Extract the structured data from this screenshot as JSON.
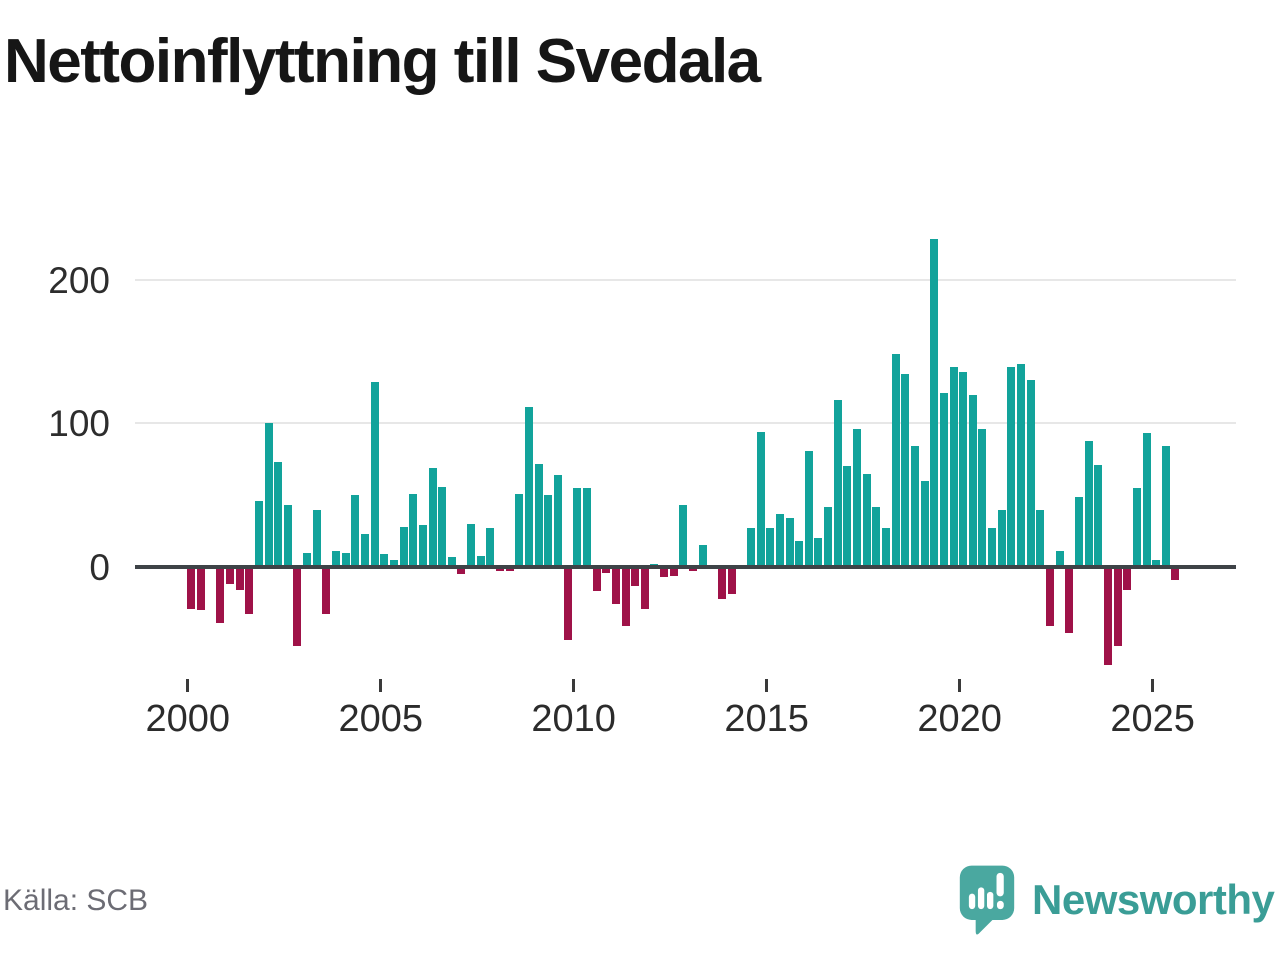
{
  "title": "Nettoinflyttning till Svedala",
  "source": "Källa: SCB",
  "branding": {
    "name": "Newsworthy",
    "icon": "newsworthy-speech-bubble-chart-icon"
  },
  "colors": {
    "positive": "#12a39b",
    "negative": "#9f1248",
    "axis": "#3e4347",
    "grid": "#e7e7e7",
    "brand_teal": "#3a9d96",
    "icon_teal": "#4aa8a0"
  },
  "chart_data": {
    "type": "bar",
    "title": "Nettoinflyttning till Svedala",
    "xlabel": "",
    "ylabel": "",
    "yticks": [
      0,
      100,
      200
    ],
    "xticks": [
      2000,
      2005,
      2010,
      2015,
      2020,
      2025
    ],
    "ylim": [
      -75,
      235
    ],
    "grid": "horizontal",
    "legend": "none",
    "positive_color": "#12a39b",
    "negative_color": "#9f1248",
    "categories": [
      "2000 Q1",
      "2000 Q2",
      "2000 Q3",
      "2000 Q4",
      "2001 Q1",
      "2001 Q2",
      "2001 Q3",
      "2001 Q4",
      "2002 Q1",
      "2002 Q2",
      "2002 Q3",
      "2002 Q4",
      "2003 Q1",
      "2003 Q2",
      "2003 Q3",
      "2003 Q4",
      "2004 Q1",
      "2004 Q2",
      "2004 Q3",
      "2004 Q4",
      "2005 Q1",
      "2005 Q2",
      "2005 Q3",
      "2005 Q4",
      "2006 Q1",
      "2006 Q2",
      "2006 Q3",
      "2006 Q4",
      "2007 Q1",
      "2007 Q2",
      "2007 Q3",
      "2007 Q4",
      "2008 Q1",
      "2008 Q2",
      "2008 Q3",
      "2008 Q4",
      "2009 Q1",
      "2009 Q2",
      "2009 Q3",
      "2009 Q4",
      "2010 Q1",
      "2010 Q2",
      "2010 Q3",
      "2010 Q4",
      "2011 Q1",
      "2011 Q2",
      "2011 Q3",
      "2011 Q4",
      "2012 Q1",
      "2012 Q2",
      "2012 Q3",
      "2012 Q4",
      "2013 Q1",
      "2013 Q2",
      "2013 Q3",
      "2013 Q4",
      "2014 Q1",
      "2014 Q2",
      "2014 Q3",
      "2014 Q4",
      "2015 Q1",
      "2015 Q2",
      "2015 Q3",
      "2015 Q4",
      "2016 Q1",
      "2016 Q2",
      "2016 Q3",
      "2016 Q4",
      "2017 Q1",
      "2017 Q2",
      "2017 Q3",
      "2017 Q4",
      "2018 Q1",
      "2018 Q2",
      "2018 Q3",
      "2018 Q4",
      "2019 Q1",
      "2019 Q2",
      "2019 Q3",
      "2019 Q4",
      "2020 Q1",
      "2020 Q2",
      "2020 Q3",
      "2020 Q4",
      "2021 Q1",
      "2021 Q2",
      "2021 Q3",
      "2021 Q4",
      "2022 Q1",
      "2022 Q2",
      "2022 Q3",
      "2022 Q4",
      "2023 Q1",
      "2023 Q2",
      "2023 Q3",
      "2023 Q4",
      "2024 Q1",
      "2024 Q2",
      "2024 Q3",
      "2024 Q4",
      "2025 Q1",
      "2025 Q2",
      "2025 Q3"
    ],
    "values": [
      -29,
      -30,
      0,
      -39,
      -12,
      -16,
      -33,
      46,
      100,
      73,
      43,
      -55,
      10,
      40,
      -33,
      11,
      10,
      50,
      23,
      129,
      9,
      5,
      28,
      51,
      29,
      69,
      56,
      7,
      -5,
      30,
      8,
      27,
      -3,
      -3,
      51,
      111,
      72,
      50,
      64,
      -51,
      55,
      55,
      -17,
      -4,
      -26,
      -41,
      -13,
      -29,
      2,
      -7,
      -6,
      43,
      -3,
      15,
      0,
      -22,
      -19,
      0,
      27,
      94,
      27,
      37,
      34,
      18,
      81,
      20,
      42,
      116,
      70,
      96,
      65,
      42,
      27,
      148,
      134,
      84,
      60,
      228,
      121,
      139,
      136,
      120,
      96,
      27,
      40,
      139,
      141,
      130,
      40,
      -41,
      11,
      -46,
      49,
      88,
      71,
      -68,
      -55,
      -16,
      55,
      93,
      5,
      84,
      -9
    ]
  }
}
